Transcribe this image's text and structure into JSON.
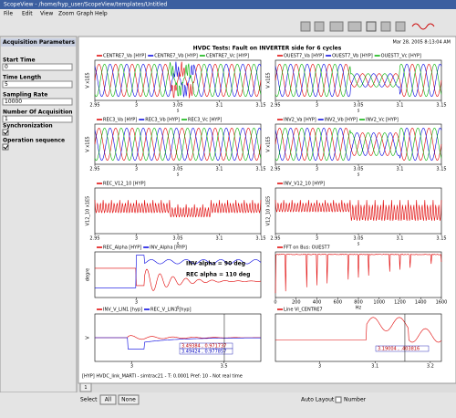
{
  "window": {
    "title": "ScopeView - /home/hyp_user/ScopeView/templates/Untitled"
  },
  "menu": [
    "File",
    "Edit",
    "View",
    "Zoom",
    "Graph",
    "Help"
  ],
  "sidebar": {
    "title": "Acquisition Parameters",
    "fields": [
      {
        "label": "Start Time",
        "value": "0"
      },
      {
        "label": "Time Length",
        "value": "5"
      },
      {
        "label": "Sampling Rate",
        "value": "10000"
      },
      {
        "label": "Number Of Acquisition",
        "value": "1"
      }
    ],
    "checks": [
      "Synchronization",
      "Operation sequence"
    ]
  },
  "header": {
    "date": "Mar 28, 2005 8:13:04 AM",
    "title": "HVDC Tests: Fault on INVERTER side for 6 cycles"
  },
  "panels": [
    {
      "legend": [
        {
          "name": "CENTRE7_Va [HYP]",
          "color": "#e00000"
        },
        {
          "name": "CENTRE7_Vb [HYP]",
          "color": "#0000e0"
        },
        {
          "name": "CENTRE7_Vc [HYP]",
          "color": "#00b000"
        }
      ],
      "ylabel": "V x1E5",
      "xlabel": "s",
      "xlim": [
        2.95,
        3.15
      ],
      "xticks": [
        2.95,
        3,
        3.05,
        3.1,
        3.15
      ]
    },
    {
      "legend": [
        {
          "name": "OUEST7_Va [HYP]",
          "color": "#e00000"
        },
        {
          "name": "OUEST7_Vb [HYP]",
          "color": "#0000e0"
        },
        {
          "name": "OUEST7_Vc [HYP]",
          "color": "#00b000"
        }
      ],
      "ylabel": "V x1E5",
      "xlabel": "s",
      "xlim": [
        2.95,
        3.15
      ],
      "xticks": [
        2.95,
        3,
        3.05,
        3.1,
        3.15
      ]
    },
    {
      "legend": [
        {
          "name": "REC3_Va [HYP]",
          "color": "#e00000"
        },
        {
          "name": "REC3_Vb [HYP]",
          "color": "#0000e0"
        },
        {
          "name": "REC3_Vc [HYP]",
          "color": "#00b000"
        }
      ],
      "ylabel": "V x1E5",
      "xlabel": "s",
      "xlim": [
        2.95,
        3.15
      ],
      "xticks": [
        2.95,
        3,
        3.05,
        3.1,
        3.15
      ]
    },
    {
      "legend": [
        {
          "name": "INV2_Va [HYP]",
          "color": "#e00000"
        },
        {
          "name": "INV2_Vb [HYP]",
          "color": "#0000e0"
        },
        {
          "name": "INV2_Vc [HYP]",
          "color": "#00b000"
        }
      ],
      "ylabel": "V x1E5",
      "xlabel": "s",
      "xlim": [
        2.95,
        3.15
      ],
      "xticks": [
        2.95,
        3,
        3.05,
        3.1,
        3.15
      ]
    },
    {
      "legend": [
        {
          "name": "REC_V12_10 [HYP]",
          "color": "#e00000"
        }
      ],
      "ylabel": "V12_10 x1E5",
      "xlabel": "s",
      "xlim": [
        2.95,
        3.15
      ],
      "xticks": [
        2.95,
        3,
        3.05,
        3.1,
        3.15
      ]
    },
    {
      "legend": [
        {
          "name": "INV_V12_10 [HYP]",
          "color": "#e00000"
        }
      ],
      "ylabel": "V12_10 x1E5",
      "xlabel": "s",
      "xlim": [
        2.95,
        3.15
      ],
      "xticks": [
        2.95,
        3,
        3.05,
        3.1,
        3.15
      ]
    },
    {
      "legend": [
        {
          "name": "REC_Alpha [HYP]",
          "color": "#e00000"
        },
        {
          "name": "INV_Alpha [HYP]",
          "color": "#0000e0"
        }
      ],
      "ylabel": "degre",
      "xlabel": "s",
      "xlim": [
        2.9,
        3.3
      ],
      "xticks": [
        3
      ],
      "notes": [
        "INV alpha = 90 deg",
        "REC alpha = 110 deg"
      ]
    },
    {
      "legend": [
        {
          "name": "FFT on Bus: OUEST7",
          "color": "#e00000"
        }
      ],
      "ylabel": "",
      "xlabel": "Hz",
      "xlim": [
        0,
        1600
      ],
      "xticks": [
        0,
        200,
        400,
        600,
        800,
        1000,
        1200,
        1400,
        1600
      ]
    },
    {
      "legend": [
        {
          "name": "INV_V_LIN1 [hyp]",
          "color": "#e00000"
        },
        {
          "name": "REC_V_LIN1 [hyp]",
          "color": "#0000e0"
        }
      ],
      "ylabel": "V",
      "xlabel": "",
      "xlim": [
        2.8,
        3.7
      ],
      "xticks": [
        3,
        3.5
      ],
      "notes": [
        "3.49384 , 0.971737",
        "3.49424 , 0.977857"
      ]
    },
    {
      "legend": [
        {
          "name": "Line Vl_CENTRE7",
          "color": "#e00000"
        }
      ],
      "ylabel": "",
      "xlabel": "",
      "xlim": [
        2.92,
        3.22
      ],
      "xticks": [
        3,
        3.1,
        3.2
      ],
      "notes": [
        "3.19004 , .403816"
      ]
    }
  ],
  "status": "[HYP] HVDC_link_MARTI - simtrac21 - T: 0.0001 Pref: 10 - Not real time",
  "tab": "1",
  "bottom": {
    "select": "Select",
    "all": "All",
    "none": "None",
    "auto": "Auto Layout",
    "number": "Number"
  }
}
